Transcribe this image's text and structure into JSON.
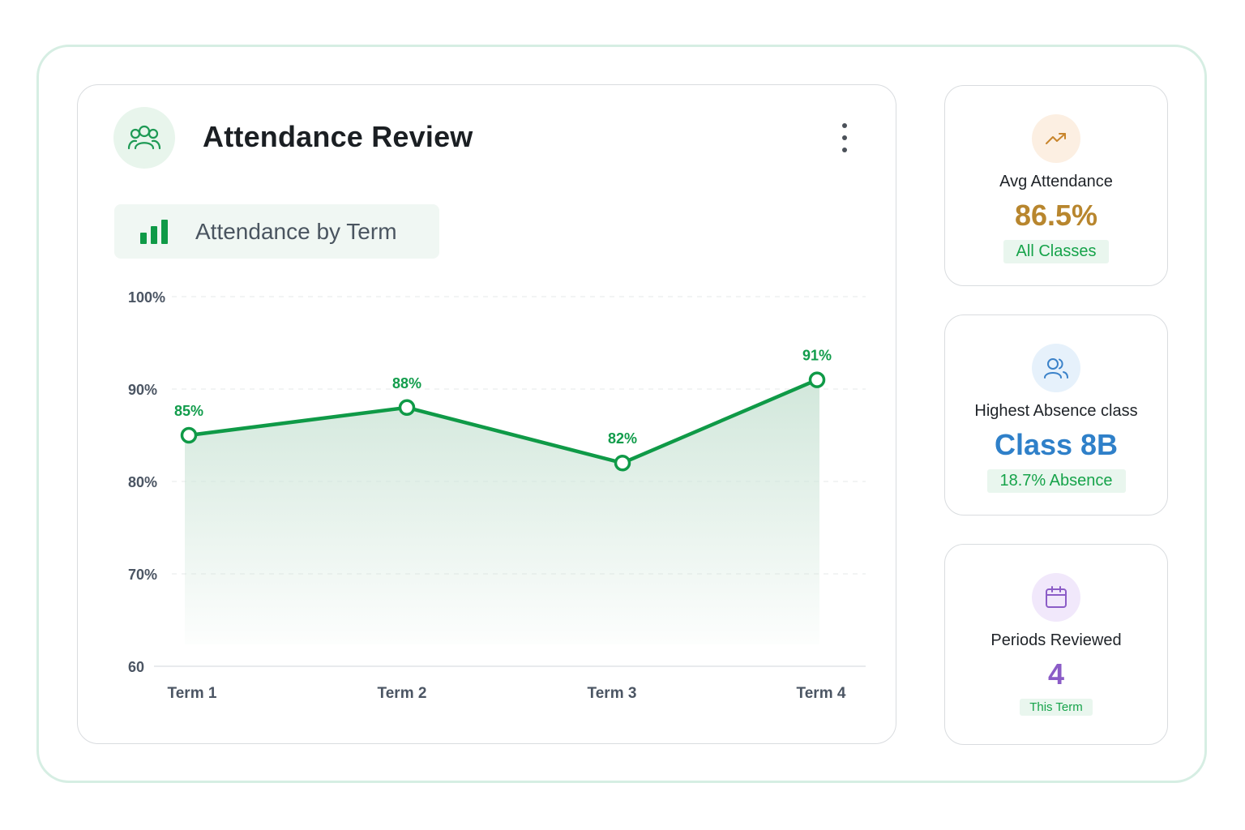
{
  "header": {
    "title": "Attendance Review",
    "icon": "users-icon",
    "menu_icon": "more-vertical-icon"
  },
  "chart_section": {
    "label": "Attendance by Term",
    "icon": "bar-chart-icon"
  },
  "chart_data": {
    "type": "area",
    "categories": [
      "Term 1",
      "Term 2",
      "Term 3",
      "Term 4"
    ],
    "series": [
      {
        "values": [
          85,
          88,
          82,
          91
        ],
        "labels": [
          "85%",
          "88%",
          "82%",
          "91%"
        ]
      }
    ],
    "y_ticks": [
      {
        "value": 100,
        "label": "100%"
      },
      {
        "value": 90,
        "label": "90%"
      },
      {
        "value": 80,
        "label": "80%"
      },
      {
        "value": 70,
        "label": "70%"
      },
      {
        "value": 60,
        "label": "60"
      }
    ],
    "ylim": [
      60,
      100
    ],
    "grid": true,
    "colors": {
      "line": "#0f9a47",
      "fill": "#cfe6d9"
    }
  },
  "stats": [
    {
      "icon": "trending-up-icon",
      "label": "Avg Attendance",
      "value": "86.5%",
      "badge": "All Classes",
      "color": "#b8862e",
      "icon_bg": "#fcefe2"
    },
    {
      "icon": "users-icon",
      "label": "Highest Absence class",
      "value": "Class 8B",
      "badge": "18.7% Absence",
      "color": "#2f80c9",
      "icon_bg": "#e6f1fb"
    },
    {
      "icon": "calendar-icon",
      "label": "Periods Reviewed",
      "value": "4",
      "badge": "This Term",
      "color": "#8b5cc7",
      "icon_bg": "#f1e8fb"
    }
  ]
}
